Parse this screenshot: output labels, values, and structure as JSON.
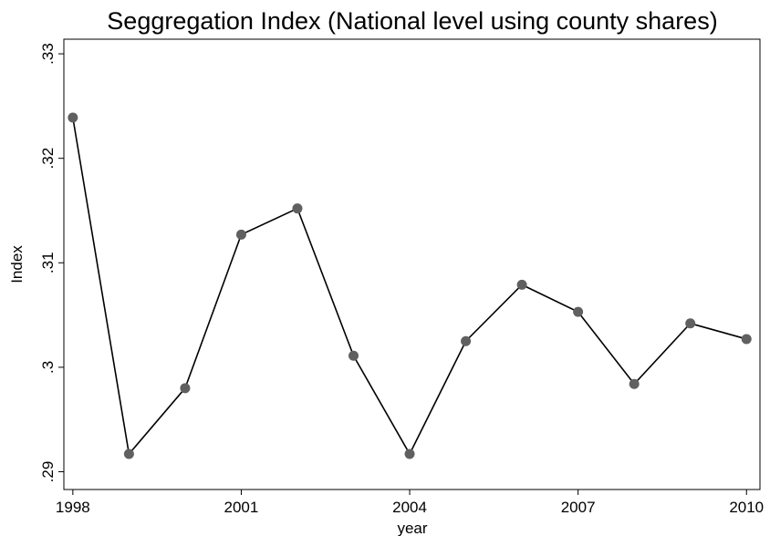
{
  "chart_data": {
    "type": "line",
    "title": "Seggregation Index (National level using county shares)",
    "x_label": "year",
    "y_label": "Index",
    "x": [
      1998,
      1999,
      2000,
      2001,
      2002,
      2003,
      2004,
      2005,
      2006,
      2007,
      2008,
      2009,
      2010
    ],
    "series": [
      {
        "name": "Index",
        "color": "#000000",
        "marker_color": "#606060",
        "values": [
          0.3239,
          0.2917,
          0.298,
          0.3127,
          0.3152,
          0.3011,
          0.2917,
          0.3025,
          0.3079,
          0.3053,
          0.2984,
          0.3042,
          0.3027
        ]
      }
    ],
    "xlim": [
      1997.84,
      2010.24
    ],
    "xticks": [
      1998,
      2001,
      2004,
      2007,
      2010
    ],
    "ylim": [
      0.2883,
      0.3314
    ],
    "yticks": [
      {
        "value": 0.29,
        "label": ".29"
      },
      {
        "value": 0.3,
        "label": ".3"
      },
      {
        "value": 0.31,
        "label": ".31"
      },
      {
        "value": 0.32,
        "label": ".32"
      },
      {
        "value": 0.33,
        "label": ".33"
      }
    ]
  }
}
